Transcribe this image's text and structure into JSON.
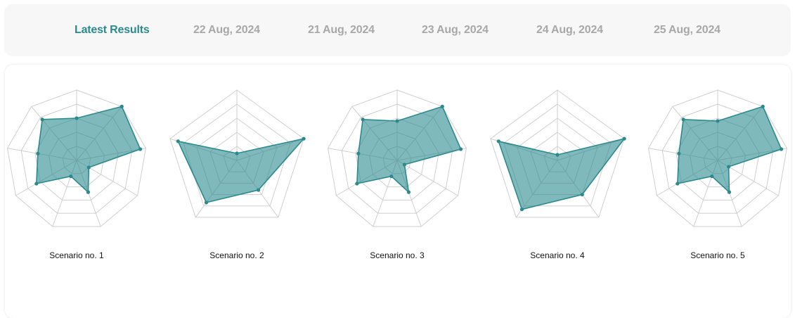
{
  "tabs": [
    {
      "label": "Latest Results",
      "active": true
    },
    {
      "label": "22 Aug, 2024",
      "active": false
    },
    {
      "label": "21 Aug, 2024",
      "active": false
    },
    {
      "label": "23 Aug, 2024",
      "active": false
    },
    {
      "label": "24 Aug, 2024",
      "active": false
    },
    {
      "label": "25 Aug, 2024",
      "active": false
    }
  ],
  "colors": {
    "accent": "#2b8a8e",
    "fill": "#2b8a8e",
    "grid": "#cfcfcf",
    "inactive_tab": "#a8a8a8"
  },
  "chart_data": [
    {
      "type": "radar",
      "title": "Scenario no. 1",
      "axes_count": 9,
      "max": 5,
      "grid_levels": 5,
      "values": [
        3.0,
        5.0,
        4.6,
        1.0,
        2.4,
        1.2,
        3.3,
        2.8,
        3.8
      ]
    },
    {
      "type": "radar",
      "title": "Scenario no. 2",
      "axes_count": 5,
      "max": 5,
      "grid_levels": 5,
      "values": [
        0.5,
        5.0,
        2.6,
        3.7,
        4.4
      ]
    },
    {
      "type": "radar",
      "title": "Scenario no. 3",
      "axes_count": 9,
      "max": 5,
      "grid_levels": 5,
      "values": [
        2.8,
        5.0,
        4.6,
        0.6,
        2.4,
        1.2,
        3.3,
        2.8,
        3.8
      ]
    },
    {
      "type": "radar",
      "title": "Scenario no. 4",
      "axes_count": 5,
      "max": 5,
      "grid_levels": 5,
      "values": [
        0.4,
        5.0,
        3.0,
        4.3,
        4.4
      ]
    },
    {
      "type": "radar",
      "title": "Scenario no. 5",
      "axes_count": 9,
      "max": 5,
      "grid_levels": 5,
      "values": [
        2.8,
        5.0,
        4.6,
        0.9,
        2.4,
        1.2,
        3.3,
        2.8,
        3.8
      ]
    }
  ]
}
